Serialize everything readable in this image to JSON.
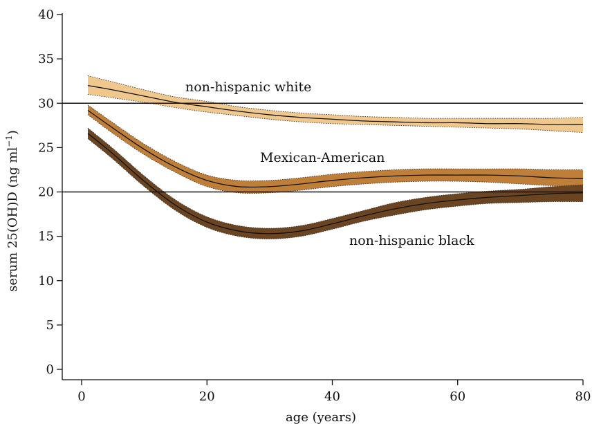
{
  "chart_data": {
    "type": "line",
    "title": "",
    "xlabel": "age (years)",
    "ylabel_main": "serum 25(OH)D (ng ml",
    "ylabel_sup": "−1",
    "ylabel_close": ")",
    "xlim": [
      0,
      80
    ],
    "ylim": [
      0,
      40
    ],
    "xticks": [
      0,
      20,
      40,
      60,
      80
    ],
    "yticks": [
      0,
      5,
      10,
      15,
      20,
      25,
      30,
      35,
      40
    ],
    "grid": false,
    "reference_lines": [
      30,
      20
    ],
    "series": [
      {
        "name": "non-hispanic white",
        "color": "#f0c88e",
        "x": [
          1,
          5,
          10,
          15,
          20,
          25,
          30,
          35,
          40,
          45,
          50,
          55,
          60,
          65,
          70,
          75,
          80
        ],
        "y": [
          32.0,
          31.5,
          30.8,
          30.1,
          29.6,
          29.1,
          28.7,
          28.4,
          28.2,
          28.0,
          27.9,
          27.8,
          27.8,
          27.7,
          27.7,
          27.6,
          27.6
        ],
        "lower": [
          31.0,
          30.6,
          30.1,
          29.5,
          29.0,
          28.6,
          28.2,
          27.9,
          27.7,
          27.6,
          27.5,
          27.4,
          27.3,
          27.2,
          27.1,
          26.9,
          26.7
        ],
        "upper": [
          33.1,
          32.4,
          31.5,
          30.7,
          30.2,
          29.6,
          29.2,
          28.9,
          28.7,
          28.5,
          28.4,
          28.3,
          28.3,
          28.3,
          28.3,
          28.3,
          28.4
        ]
      },
      {
        "name": "Mexican-American",
        "color": "#bf7f39",
        "x": [
          1,
          5,
          10,
          15,
          20,
          25,
          30,
          35,
          40,
          45,
          50,
          55,
          60,
          65,
          70,
          75,
          80
        ],
        "y": [
          29.2,
          27.2,
          24.8,
          22.8,
          21.3,
          20.6,
          20.6,
          20.9,
          21.3,
          21.6,
          21.8,
          21.9,
          21.9,
          21.9,
          21.8,
          21.6,
          21.5
        ],
        "lower": [
          28.7,
          26.6,
          24.2,
          22.2,
          20.6,
          19.9,
          19.9,
          20.2,
          20.6,
          20.9,
          21.1,
          21.2,
          21.2,
          21.1,
          20.9,
          20.7,
          20.6
        ],
        "upper": [
          29.8,
          27.8,
          25.4,
          23.4,
          21.9,
          21.3,
          21.3,
          21.6,
          22.0,
          22.3,
          22.5,
          22.6,
          22.6,
          22.6,
          22.6,
          22.5,
          22.5
        ]
      },
      {
        "name": "non-hispanic black",
        "color": "#6b4421",
        "x": [
          1,
          5,
          10,
          15,
          20,
          25,
          30,
          35,
          40,
          45,
          50,
          55,
          60,
          65,
          70,
          75,
          80
        ],
        "y": [
          26.6,
          24.3,
          21.2,
          18.5,
          16.6,
          15.6,
          15.3,
          15.6,
          16.4,
          17.3,
          18.1,
          18.7,
          19.1,
          19.4,
          19.6,
          19.8,
          19.9
        ],
        "lower": [
          26.0,
          23.7,
          20.6,
          17.9,
          16.0,
          15.0,
          14.7,
          15.0,
          15.8,
          16.7,
          17.4,
          18.0,
          18.4,
          18.7,
          18.8,
          18.9,
          18.9
        ],
        "upper": [
          27.2,
          24.9,
          21.8,
          19.1,
          17.2,
          16.2,
          15.9,
          16.2,
          17.0,
          17.9,
          18.8,
          19.4,
          19.8,
          20.1,
          20.3,
          20.6,
          20.8
        ]
      }
    ]
  }
}
